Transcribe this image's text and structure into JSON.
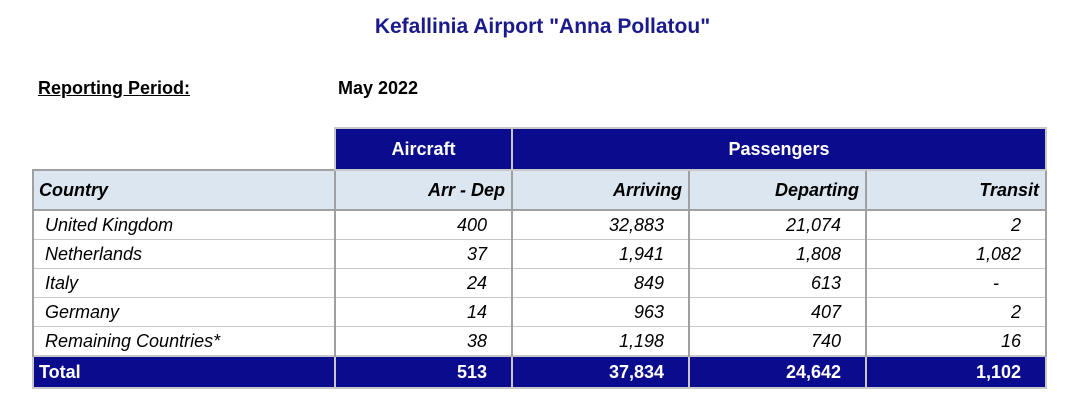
{
  "title": "Kefallinia Airport \"Anna Pollatou\"",
  "reporting_period": {
    "label": "Reporting Period:",
    "value": "May 2022"
  },
  "group_headers": {
    "aircraft": "Aircraft",
    "passengers": "Passengers"
  },
  "columns": [
    "Country",
    "Arr - Dep",
    "Arriving",
    "Departing",
    "Transit"
  ],
  "rows": [
    [
      "United Kingdom",
      "400",
      "32,883",
      "21,074",
      "2"
    ],
    [
      "Netherlands",
      "37",
      "1,941",
      "1,808",
      "1,082"
    ],
    [
      "Italy",
      "24",
      "849",
      "613",
      "-"
    ],
    [
      "Germany",
      "14",
      "963",
      "407",
      "2"
    ],
    [
      "Remaining Countries*",
      "38",
      "1,198",
      "740",
      "16"
    ]
  ],
  "total": [
    "Total",
    "513",
    "37,834",
    "24,642",
    "1,102"
  ],
  "colors": {
    "header_blue": "#0b0b8e",
    "title_blue": "#1a1a8c",
    "column_header_bg": "#dce6f1"
  }
}
